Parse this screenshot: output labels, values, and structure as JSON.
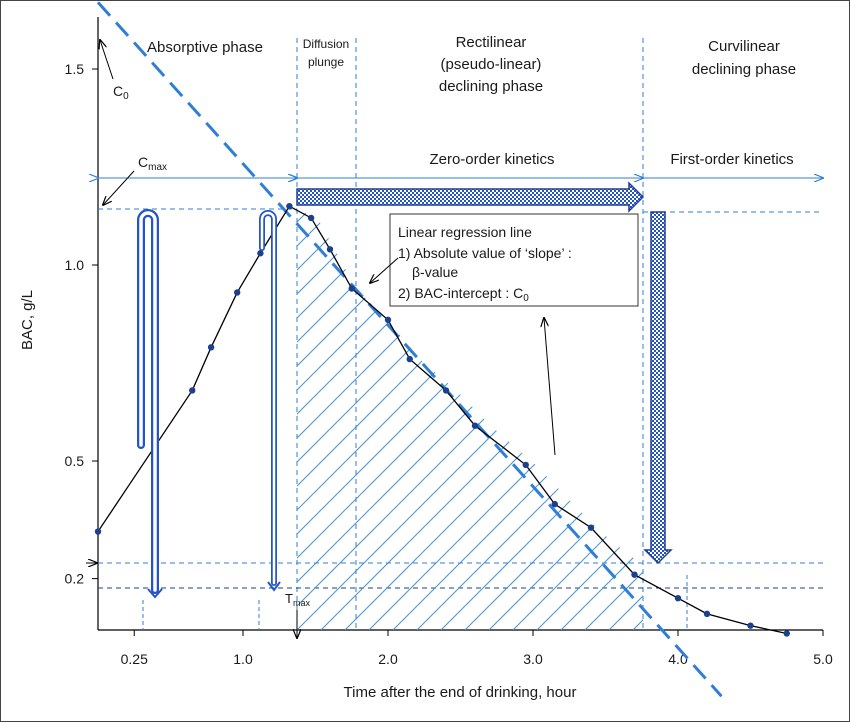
{
  "chart_data": {
    "type": "line",
    "xlabel": "Time after the end of drinking, hour",
    "ylabel": "BAC, g/L",
    "x_ticks": [
      {
        "value": 0.25,
        "label": "0.25"
      },
      {
        "value": 1.0,
        "label": "1.0"
      },
      {
        "value": 2.0,
        "label": "2.0"
      },
      {
        "value": 3.0,
        "label": "3.0"
      },
      {
        "value": 4.0,
        "label": "4.0"
      },
      {
        "value": 5.0,
        "label": "5.0"
      }
    ],
    "y_ticks": [
      {
        "value": 0.2,
        "label": "0.2"
      },
      {
        "value": 0.5,
        "label": "0.5"
      },
      {
        "value": 1.0,
        "label": "1.0"
      },
      {
        "value": 1.5,
        "label": "1.5"
      }
    ],
    "series": [
      {
        "name": "",
        "color": "#000000",
        "points": [
          [
            0.0,
            0.32
          ],
          [
            0.65,
            0.68
          ],
          [
            0.78,
            0.79
          ],
          [
            0.96,
            0.93
          ],
          [
            1.12,
            1.03
          ],
          [
            1.32,
            1.15
          ],
          [
            1.47,
            1.12
          ],
          [
            1.6,
            1.04
          ],
          [
            1.75,
            0.94
          ],
          [
            2.0,
            0.86
          ],
          [
            2.15,
            0.76
          ],
          [
            2.4,
            0.68
          ],
          [
            2.6,
            0.59
          ],
          [
            2.95,
            0.49
          ],
          [
            3.15,
            0.39
          ],
          [
            3.4,
            0.33
          ],
          [
            3.7,
            0.21
          ],
          [
            4.0,
            0.15
          ],
          [
            4.2,
            0.11
          ],
          [
            4.5,
            0.08
          ],
          [
            4.75,
            0.06
          ]
        ]
      }
    ],
    "regression_line": {
      "color": "#2f7fd6",
      "from": [
        0.0,
        1.67
      ],
      "to": [
        4.3,
        -0.1
      ]
    },
    "phases": [
      {
        "lines": [
          "Absorptive phase"
        ]
      },
      {
        "lines": [
          "Diffusion",
          "plunge"
        ]
      },
      {
        "lines": [
          "Rectilinear",
          "(pseudo-linear)",
          "declining phase"
        ]
      },
      {
        "lines": [
          "Curvilinear",
          "declining phase"
        ]
      }
    ],
    "kinetics": {
      "cmax_label": "C",
      "cmax_sub": "max",
      "zero_order": "Zero-order kinetics",
      "first_order": "First-order kinetics"
    },
    "annotations": {
      "c0_label": "C",
      "c0_sub": "0",
      "tmax_label": "T",
      "tmax_sub": "max",
      "box_lines": [
        "Linear regression line",
        "1) Absolute value of ‘slope’ :",
        "β-value",
        "2) BAC-intercept : C"
      ],
      "box_sub": "0"
    },
    "colors": {
      "accent": "#2f7fd6",
      "curve": "#000000",
      "points": "#1d3f8f",
      "hatch": "#4a90d9"
    }
  }
}
